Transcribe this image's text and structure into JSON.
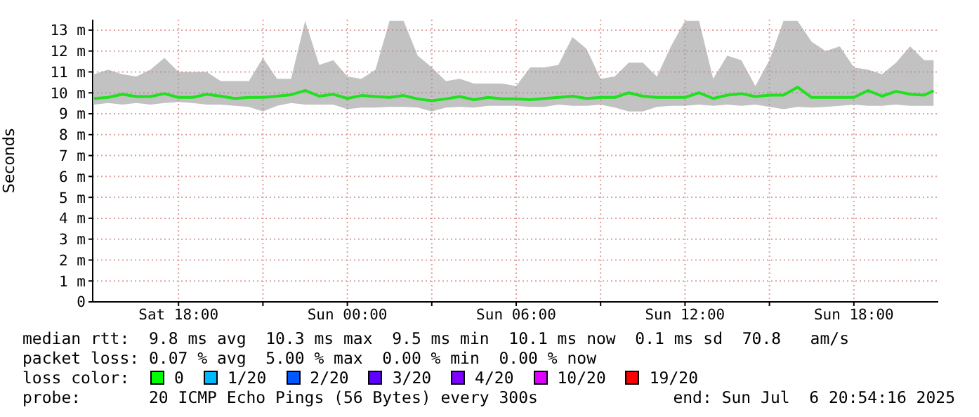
{
  "chart_data": {
    "type": "line",
    "ylabel": "Seconds",
    "x": [
      "2025-07-05T15:00",
      "2025-07-05T15:30",
      "2025-07-05T16:00",
      "2025-07-05T16:30",
      "2025-07-05T17:00",
      "2025-07-05T17:30",
      "2025-07-05T18:00",
      "2025-07-05T18:30",
      "2025-07-05T19:00",
      "2025-07-05T19:30",
      "2025-07-05T20:00",
      "2025-07-05T20:30",
      "2025-07-05T21:00",
      "2025-07-05T21:30",
      "2025-07-05T22:00",
      "2025-07-05T22:30",
      "2025-07-05T23:00",
      "2025-07-05T23:30",
      "2025-07-06T00:00",
      "2025-07-06T00:30",
      "2025-07-06T01:00",
      "2025-07-06T01:30",
      "2025-07-06T02:00",
      "2025-07-06T02:30",
      "2025-07-06T03:00",
      "2025-07-06T03:30",
      "2025-07-06T04:00",
      "2025-07-06T04:30",
      "2025-07-06T05:00",
      "2025-07-06T05:30",
      "2025-07-06T06:00",
      "2025-07-06T06:30",
      "2025-07-06T07:00",
      "2025-07-06T07:30",
      "2025-07-06T08:00",
      "2025-07-06T08:30",
      "2025-07-06T09:00",
      "2025-07-06T09:30",
      "2025-07-06T10:00",
      "2025-07-06T10:30",
      "2025-07-06T11:00",
      "2025-07-06T11:30",
      "2025-07-06T12:00",
      "2025-07-06T12:30",
      "2025-07-06T13:00",
      "2025-07-06T13:30",
      "2025-07-06T14:00",
      "2025-07-06T14:30",
      "2025-07-06T15:00",
      "2025-07-06T15:30",
      "2025-07-06T16:00",
      "2025-07-06T16:30",
      "2025-07-06T17:00",
      "2025-07-06T17:30",
      "2025-07-06T18:00",
      "2025-07-06T18:30",
      "2025-07-06T19:00",
      "2025-07-06T19:30",
      "2025-07-06T20:00",
      "2025-07-06T20:30",
      "2025-07-06T20:50"
    ],
    "series": [
      {
        "color": "#20e020",
        "values": [
          9.73,
          9.78,
          9.93,
          9.82,
          9.82,
          9.96,
          9.78,
          9.78,
          9.93,
          9.84,
          9.73,
          9.78,
          9.78,
          9.84,
          9.91,
          10.11,
          9.84,
          9.93,
          9.73,
          9.87,
          9.82,
          9.78,
          9.87,
          9.71,
          9.62,
          9.71,
          9.82,
          9.67,
          9.78,
          9.71,
          9.71,
          9.67,
          9.73,
          9.78,
          9.84,
          9.73,
          9.78,
          9.78,
          10.0,
          9.84,
          9.78,
          9.78,
          9.78,
          10.0,
          9.73,
          9.89,
          9.96,
          9.82,
          9.89,
          9.89,
          10.27,
          9.78,
          9.78,
          9.78,
          9.78,
          10.11,
          9.84,
          10.07,
          9.93,
          9.89,
          10.1
        ],
        "lower": [
          9.44,
          9.51,
          9.44,
          9.51,
          9.44,
          9.51,
          9.56,
          9.51,
          9.44,
          9.44,
          9.38,
          9.33,
          9.11,
          9.38,
          9.51,
          9.44,
          9.44,
          9.44,
          9.22,
          9.29,
          9.29,
          9.33,
          9.33,
          9.29,
          9.11,
          9.29,
          9.33,
          9.29,
          9.38,
          9.38,
          9.38,
          9.33,
          9.33,
          9.44,
          9.38,
          9.38,
          9.44,
          9.29,
          9.11,
          9.11,
          9.33,
          9.38,
          9.38,
          9.44,
          9.38,
          9.44,
          9.38,
          9.44,
          9.33,
          9.22,
          9.33,
          9.29,
          9.33,
          9.38,
          9.44,
          9.38,
          9.38,
          9.44,
          9.38,
          9.38,
          9.38
        ],
        "upper": [
          10.89,
          11.11,
          10.89,
          10.78,
          11.11,
          11.67,
          11.0,
          11.0,
          11.0,
          10.56,
          10.56,
          10.56,
          11.67,
          10.67,
          10.67,
          13.44,
          11.33,
          11.56,
          10.78,
          10.67,
          11.11,
          13.44,
          13.44,
          11.78,
          11.22,
          10.56,
          10.67,
          10.44,
          10.44,
          10.44,
          10.33,
          11.22,
          11.22,
          11.33,
          12.67,
          12.11,
          10.67,
          10.78,
          11.44,
          11.44,
          10.78,
          12.22,
          13.44,
          13.44,
          10.67,
          11.78,
          11.56,
          10.33,
          11.56,
          13.44,
          13.44,
          12.44,
          12.0,
          12.22,
          11.22,
          11.11,
          10.89,
          11.44,
          12.22,
          11.56,
          11.56
        ]
      }
    ],
    "xlim": [
      "2025-07-05T14:57",
      "2025-07-06T21:00"
    ],
    "xticks": [
      {
        "value": "2025-07-05T18:00",
        "label": "Sat 18:00"
      },
      {
        "value": "2025-07-05T21:00",
        "label": null
      },
      {
        "value": "2025-07-06T00:00",
        "label": "Sun 00:00"
      },
      {
        "value": "2025-07-06T03:00",
        "label": null
      },
      {
        "value": "2025-07-06T06:00",
        "label": "Sun 06:00"
      },
      {
        "value": "2025-07-06T09:00",
        "label": null
      },
      {
        "value": "2025-07-06T12:00",
        "label": "Sun 12:00"
      },
      {
        "value": "2025-07-06T15:00",
        "label": null
      },
      {
        "value": "2025-07-06T18:00",
        "label": "Sun 18:00"
      }
    ],
    "ylim": [
      0,
      13.5
    ],
    "yticks": [
      0,
      {
        "value": 1,
        "label": "1 m"
      },
      {
        "value": 2,
        "label": "2 m"
      },
      {
        "value": 3,
        "label": "3 m"
      },
      {
        "value": 4,
        "label": "4 m"
      },
      {
        "value": 5,
        "label": "5 m"
      },
      {
        "value": 6,
        "label": "6 m"
      },
      {
        "value": 7,
        "label": "7 m"
      },
      {
        "value": 8,
        "label": "8 m"
      },
      {
        "value": 9,
        "label": "9 m"
      },
      {
        "value": 10,
        "label": "10 m"
      },
      {
        "value": 11,
        "label": "11 m"
      },
      {
        "value": 12,
        "label": "12 m"
      },
      {
        "value": 13,
        "label": "13 m"
      }
    ],
    "grid": true,
    "annotations": [
      "median rtt:  9.8 ms avg  10.3 ms max  9.5 ms min  10.1 ms now  0.1 ms sd  70.8   am/s",
      "packet loss: 0.07 % avg  5.00 % max  0.00 % min  0.00 % now",
      "loss color:",
      "0",
      "1/20",
      "2/20",
      "3/20",
      "4/20",
      "10/20",
      "19/20",
      "probe:       20 ICMP Echo Pings (56 Bytes) every 300s",
      "end: Sun Jul  6 20:54:16 2025"
    ]
  }
}
